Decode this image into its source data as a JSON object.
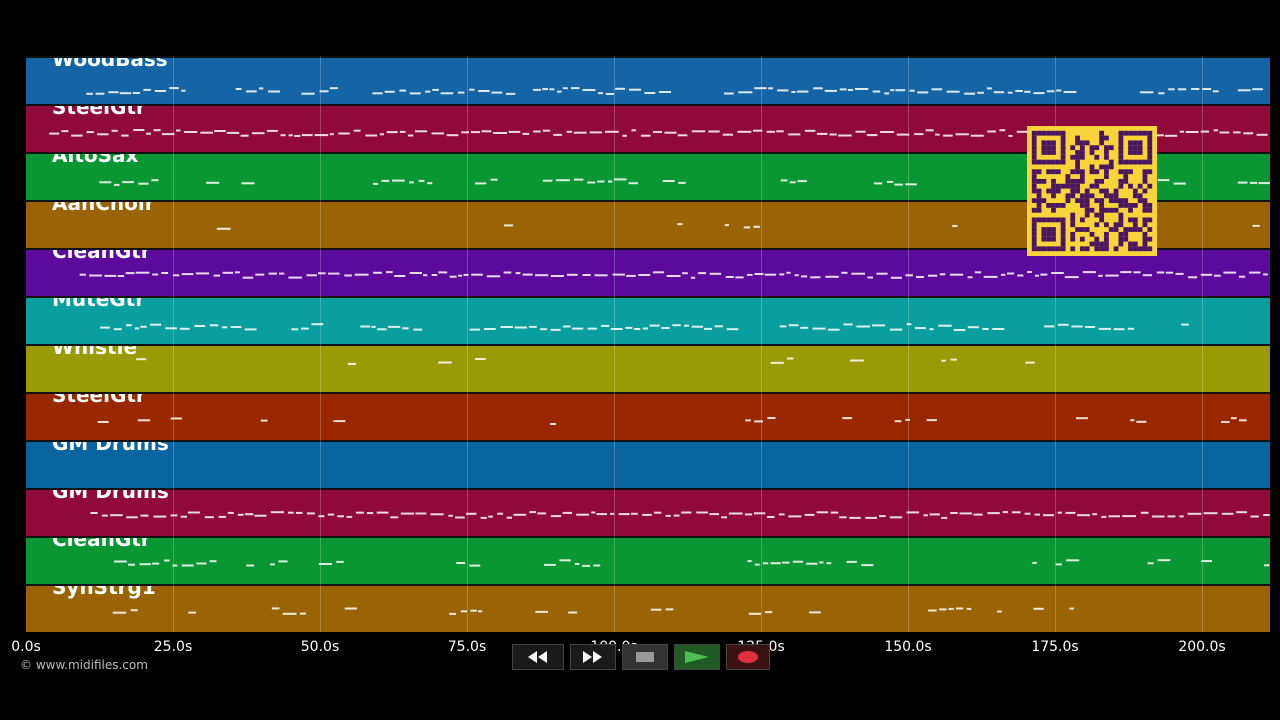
{
  "tracks": [
    {
      "name": "WoodBass",
      "color": "#1565a6"
    },
    {
      "name": "SteelGtr",
      "color": "#8f0a3b"
    },
    {
      "name": "AltoSax",
      "color": "#0a9632"
    },
    {
      "name": "AahChoir",
      "color": "#9a6405"
    },
    {
      "name": "CleanGtr",
      "color": "#5c0a9c"
    },
    {
      "name": "MuteGtr",
      "color": "#0a9e9e"
    },
    {
      "name": "Whistle",
      "color": "#9a9a05"
    },
    {
      "name": "SteelGtr",
      "color": "#992800"
    },
    {
      "name": "GM Drums",
      "color": "#0a64a0"
    },
    {
      "name": "GM Drums",
      "color": "#8f0a3b"
    },
    {
      "name": "CleanGtr",
      "color": "#0a9632"
    },
    {
      "name": "SynStrg1",
      "color": "#9a6405"
    }
  ],
  "timeline": {
    "ticks": [
      "0.0s",
      "25.0s",
      "50.0s",
      "75.0s",
      "100.0s",
      "125.0s",
      "150.0s",
      "175.0s",
      "200.0s"
    ]
  },
  "copyright": "© www.midifiles.com",
  "transport": {
    "rewind_icon": "rewind-icon",
    "forward_icon": "fast-forward-icon",
    "stop_icon": "stop-icon",
    "play_icon": "play-icon",
    "record_icon": "record-icon"
  },
  "qr": {
    "color": "#f7d53a",
    "dark": "#4a1560"
  }
}
